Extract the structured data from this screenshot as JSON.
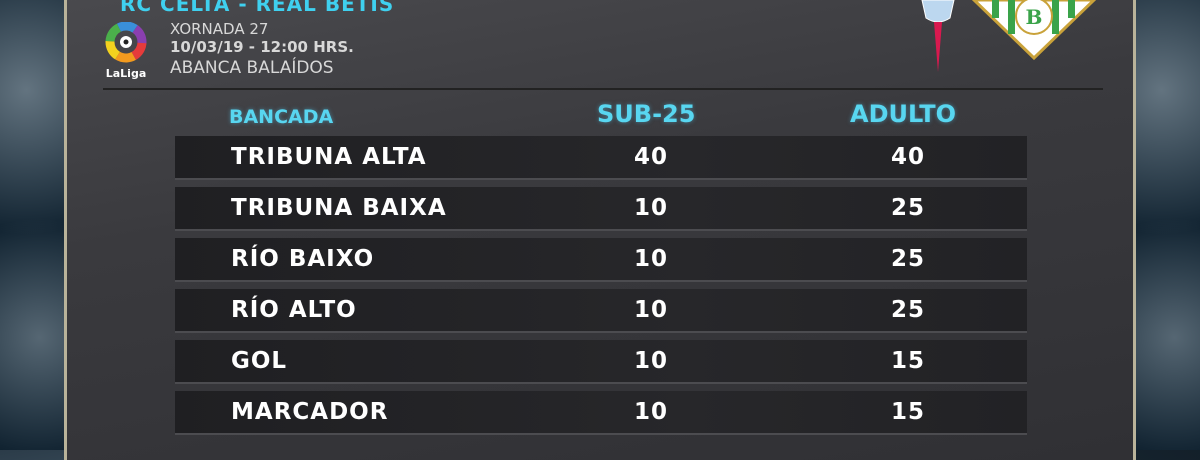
{
  "header": {
    "match": "RC CELTA - REAL BETIS",
    "matchday": "XORNADA 27",
    "datetime": "10/03/19 - 12:00 HRS.",
    "stadium": "ABANCA BALAÍDOS",
    "league_logo": "LaLiga"
  },
  "table": {
    "columns": [
      "BANCADA",
      "SUB-25",
      "ADULTO"
    ],
    "rows": [
      {
        "stand": "TRIBUNA ALTA",
        "sub25": "40",
        "adult": "40"
      },
      {
        "stand": "TRIBUNA BAIXA",
        "sub25": "10",
        "adult": "25"
      },
      {
        "stand": "RÍO BAIXO",
        "sub25": "10",
        "adult": "25"
      },
      {
        "stand": "RÍO ALTO",
        "sub25": "10",
        "adult": "25"
      },
      {
        "stand": "GOL",
        "sub25": "10",
        "adult": "15"
      },
      {
        "stand": "MARCADOR",
        "sub25": "10",
        "adult": "15"
      }
    ]
  },
  "colors": {
    "accent": "#3fd0ef",
    "celta_red": "#d9194f",
    "betis_green": "#3aa34a"
  }
}
